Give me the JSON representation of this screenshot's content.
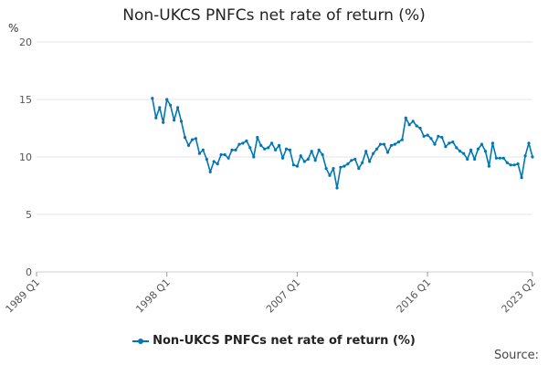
{
  "chart_data": {
    "type": "line",
    "title": "Non-UKCS PNFCs net rate of return (%)",
    "y_unit": "%",
    "ylim": [
      0,
      20
    ],
    "yticks": [
      0,
      5,
      10,
      15,
      20
    ],
    "xlim": [
      1989.0,
      2023.25
    ],
    "xtick_labels": [
      "1989 Q1",
      "1998 Q1",
      "2007 Q1",
      "2016 Q1",
      "2023 Q2"
    ],
    "xtick_positions": [
      1989.0,
      1998.0,
      2007.0,
      2016.0,
      2023.25
    ],
    "grid": true,
    "legend": "bottom",
    "series": [
      {
        "name": "Non-UKCS PNFCs net rate of return (%)",
        "color": "#0077b5",
        "x": [
          1997.0,
          1997.25,
          1997.5,
          1997.75,
          1998.0,
          1998.25,
          1998.5,
          1998.75,
          1999.0,
          1999.25,
          1999.5,
          1999.75,
          2000.0,
          2000.25,
          2000.5,
          2000.75,
          2001.0,
          2001.25,
          2001.5,
          2001.75,
          2002.0,
          2002.25,
          2002.5,
          2002.75,
          2003.0,
          2003.25,
          2003.5,
          2003.75,
          2004.0,
          2004.25,
          2004.5,
          2004.75,
          2005.0,
          2005.25,
          2005.5,
          2005.75,
          2006.0,
          2006.25,
          2006.5,
          2006.75,
          2007.0,
          2007.25,
          2007.5,
          2007.75,
          2008.0,
          2008.25,
          2008.5,
          2008.75,
          2009.0,
          2009.25,
          2009.5,
          2009.75,
          2010.0,
          2010.25,
          2010.5,
          2010.75,
          2011.0,
          2011.25,
          2011.5,
          2011.75,
          2012.0,
          2012.25,
          2012.5,
          2012.75,
          2013.0,
          2013.25,
          2013.5,
          2013.75,
          2014.0,
          2014.25,
          2014.5,
          2014.75,
          2015.0,
          2015.25,
          2015.5,
          2015.75,
          2016.0,
          2016.25,
          2016.5,
          2016.75,
          2017.0,
          2017.25,
          2017.5,
          2017.75,
          2018.0,
          2018.25,
          2018.5,
          2018.75,
          2019.0,
          2019.25,
          2019.5,
          2019.75,
          2020.0,
          2020.25,
          2020.5,
          2020.75,
          2021.0,
          2021.25,
          2021.5,
          2021.75,
          2022.0,
          2022.25,
          2022.5,
          2022.75,
          2023.0,
          2023.25
        ],
        "y": [
          15.1,
          13.4,
          14.3,
          13.0,
          15.0,
          14.5,
          13.2,
          14.3,
          13.1,
          11.7,
          11.0,
          11.5,
          11.6,
          10.3,
          10.6,
          9.8,
          8.7,
          9.6,
          9.4,
          10.2,
          10.2,
          9.9,
          10.6,
          10.6,
          11.1,
          11.2,
          11.4,
          10.8,
          10.0,
          11.7,
          11.0,
          10.7,
          10.8,
          11.2,
          10.6,
          11.0,
          9.9,
          10.7,
          10.6,
          9.3,
          9.2,
          10.1,
          9.6,
          9.8,
          10.5,
          9.7,
          10.6,
          10.2,
          9.0,
          8.4,
          9.0,
          7.3,
          9.1,
          9.2,
          9.4,
          9.7,
          9.8,
          9.0,
          9.5,
          10.5,
          9.6,
          10.3,
          10.7,
          11.1,
          11.1,
          10.4,
          11.0,
          11.1,
          11.3,
          11.5,
          13.4,
          12.8,
          13.1,
          12.7,
          12.5,
          11.8,
          11.9,
          11.6,
          11.1,
          11.8,
          11.7,
          10.9,
          11.2,
          11.3,
          10.8,
          10.5,
          10.3,
          9.8,
          10.6,
          9.8,
          10.7,
          11.1,
          10.5,
          9.2,
          11.2,
          9.9,
          9.9,
          9.9,
          9.5,
          9.3,
          9.3,
          9.4,
          8.2,
          10.1,
          11.2,
          10.0
        ]
      }
    ]
  },
  "legend_label": "Non-UKCS PNFCs net rate of return (%)",
  "source_label": "Source:"
}
